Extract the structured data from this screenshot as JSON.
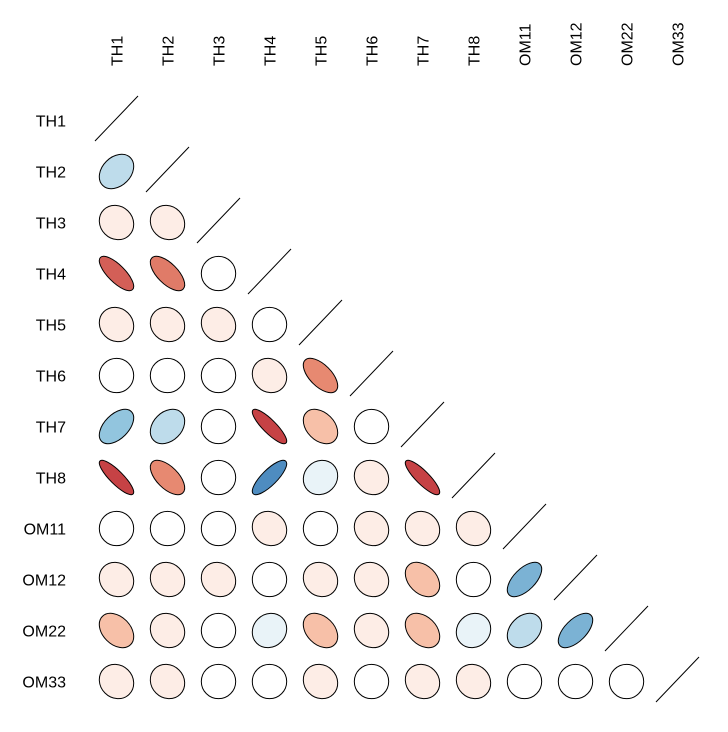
{
  "chart_data": {
    "type": "heatmap",
    "subtype": "correlation-ellipse-matrix",
    "triangle": "lower",
    "labels": [
      "TH1",
      "TH2",
      "TH3",
      "TH4",
      "TH5",
      "TH6",
      "TH7",
      "TH8",
      "OM11",
      "OM12",
      "OM22",
      "OM33"
    ],
    "matrix": [
      [
        1.0
      ],
      [
        -0.3,
        1.0
      ],
      [
        0.1,
        0.1,
        1.0
      ],
      [
        0.75,
        0.65,
        0.0,
        1.0
      ],
      [
        0.1,
        0.1,
        0.1,
        0.0,
        1.0
      ],
      [
        0.0,
        0.0,
        0.0,
        0.1,
        0.6,
        1.0
      ],
      [
        -0.5,
        -0.3,
        0.0,
        0.85,
        0.35,
        0.0,
        1.0
      ],
      [
        0.85,
        0.6,
        0.0,
        -0.8,
        -0.1,
        0.1,
        0.85,
        1.0
      ],
      [
        0.0,
        0.0,
        0.0,
        0.1,
        0.0,
        0.1,
        0.1,
        0.1,
        1.0
      ],
      [
        0.1,
        0.1,
        0.1,
        0.0,
        0.1,
        0.1,
        0.35,
        0.0,
        -0.6,
        1.0
      ],
      [
        0.35,
        0.1,
        0.0,
        -0.1,
        0.35,
        0.1,
        0.35,
        -0.1,
        -0.3,
        -0.6,
        1.0
      ],
      [
        0.1,
        0.1,
        0.0,
        0.0,
        0.1,
        0.0,
        0.1,
        0.1,
        0.0,
        0.0,
        0.0,
        1.0
      ]
    ],
    "color_scale": {
      "negative": "#2166ac",
      "zero": "#ffffff",
      "positive": "#b2182b",
      "neg_mid": "#92c5de",
      "pos_mid": "#f4a582"
    },
    "diagonal_mark": "line",
    "legend": "none",
    "grid": false
  }
}
